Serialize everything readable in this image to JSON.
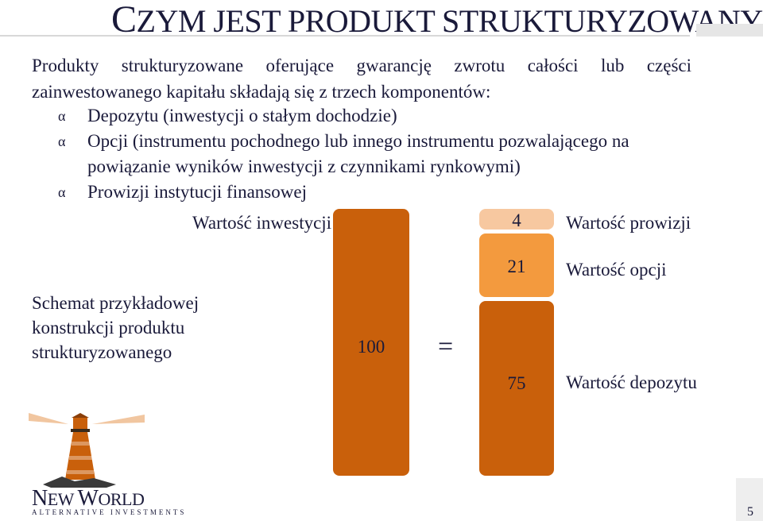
{
  "title": {
    "first_letter": "C",
    "rest": "ZYM JEST PRODUKT STRUKTURYZOWANY?"
  },
  "intro": "Produkty strukturyzowane oferujące gwarancję zwrotu całości lub części zainwestowanego kapitału składają się z trzech komponentów:",
  "bullet_glyph": "α",
  "bullets": [
    "Depozytu (inwestycji o stałym dochodzie)",
    "Opcji (instrumentu pochodnego lub innego instrumentu pozwalającego na powiązanie wyników inwestycji z czynnikami rynkowymi)",
    "Prowizji instytucji finansowej"
  ],
  "diagram": {
    "investment_label": "Wartość inwestycji",
    "investment_value": "100",
    "equals": "=",
    "scheme_lines": [
      "Schemat przykładowej",
      "konstrukcji produktu",
      "strukturyzowanego"
    ],
    "components": [
      {
        "label": "Wartość prowizji",
        "value": "4",
        "amount": 4,
        "color": "#f7c8a0"
      },
      {
        "label": "Wartość opcji",
        "value": "21",
        "amount": 21,
        "color": "#f39a3e"
      },
      {
        "label": "Wartość depozytu",
        "value": "75",
        "amount": 75,
        "color": "#c9600b"
      }
    ],
    "investment_color": "#c9600b"
  },
  "brand": {
    "name_part1": "N",
    "name_part2": "EW ",
    "name_part3": "W",
    "name_part4": "ORLD",
    "tagline": "ALTERNATIVE INVESTMENTS"
  },
  "page_number": "5"
}
